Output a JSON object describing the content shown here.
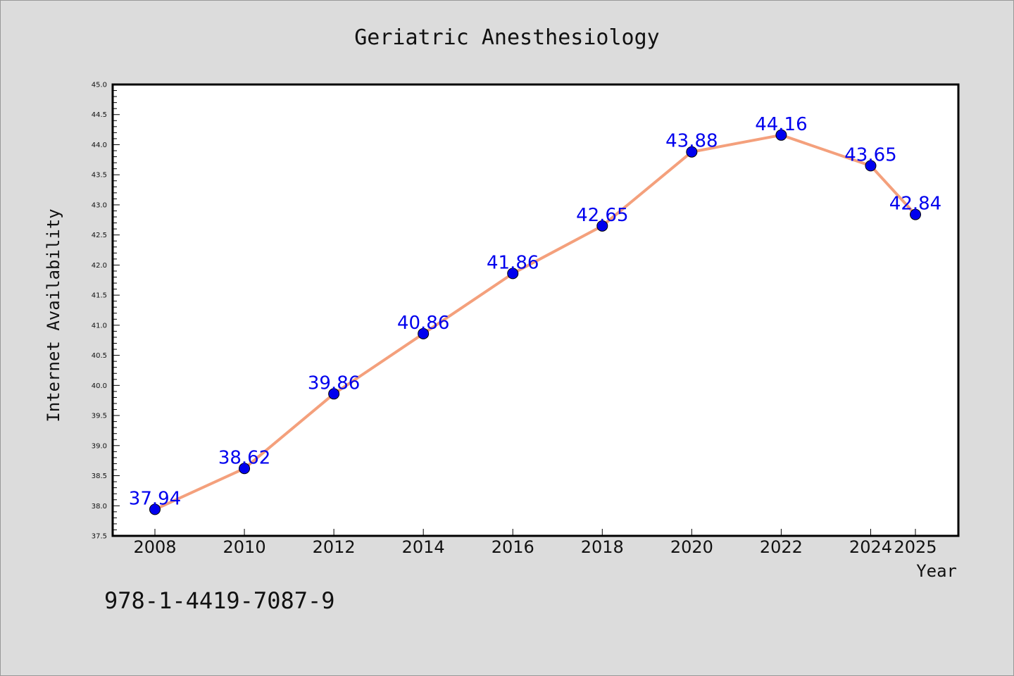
{
  "isbn": "978-1-4419-7087-9",
  "colors": {
    "line": "#f4a07c",
    "marker": "#0000ee",
    "label": "#0000ee",
    "background": "#dcdcdc",
    "plot": "#ffffff"
  },
  "chart_data": {
    "type": "line",
    "title": "Geriatric Anesthesiology",
    "xlabel": "Year",
    "ylabel": "Internet Availability",
    "ylim": [
      37.5,
      45.0
    ],
    "yticks": [
      "37.5",
      "38.0",
      "38.5",
      "39.0",
      "39.5",
      "40.0",
      "40.5",
      "41.0",
      "41.5",
      "42.0",
      "42.5",
      "43.0",
      "43.5",
      "44.0",
      "44.5",
      "45.0"
    ],
    "x": [
      2008,
      2010,
      2012,
      2014,
      2016,
      2018,
      2020,
      2022,
      2024,
      2025
    ],
    "xtick_labels": [
      "2008",
      "2010",
      "2012",
      "2014",
      "2016",
      "2018",
      "2020",
      "2022",
      "2024",
      "2025"
    ],
    "series": [
      {
        "values": [
          37.94,
          38.62,
          39.86,
          40.86,
          41.86,
          42.65,
          43.88,
          44.16,
          43.65,
          42.84
        ],
        "labels": [
          "37.94",
          "38.62",
          "39.86",
          "40.86",
          "41.86",
          "42.65",
          "43.88",
          "44.16",
          "43.65",
          "42.84"
        ]
      }
    ],
    "grid": false,
    "legend": "none"
  }
}
